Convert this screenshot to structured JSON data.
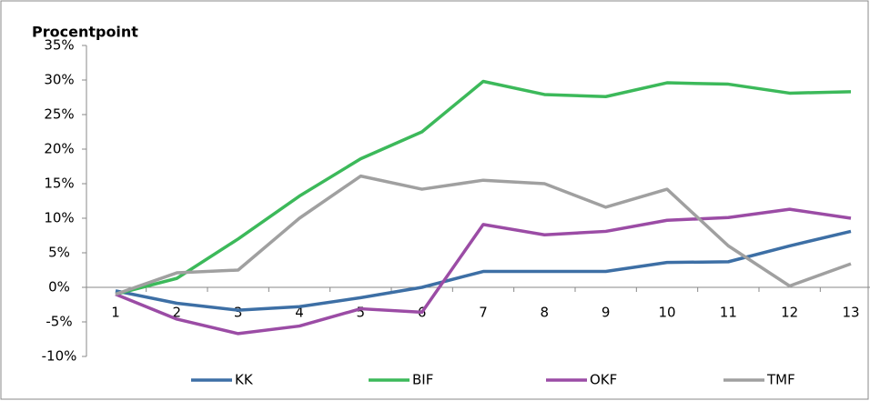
{
  "chart_data": {
    "type": "line",
    "y_label": "Procentpoint",
    "categories": [
      "1",
      "2",
      "3",
      "4",
      "5",
      "6",
      "7",
      "8",
      "9",
      "10",
      "11",
      "12",
      "13"
    ],
    "series": [
      {
        "name": "KK",
        "color": "#3d6fa5",
        "values": [
          -0.5,
          -2.3,
          -3.3,
          -2.8,
          -1.5,
          0,
          2.3,
          2.3,
          2.3,
          3.6,
          3.7,
          6,
          8.1
        ]
      },
      {
        "name": "BIF",
        "color": "#3cb95a",
        "values": [
          -1,
          1.3,
          7,
          13.2,
          18.6,
          22.5,
          29.8,
          27.9,
          27.6,
          29.6,
          29.4,
          28.1,
          28.3
        ]
      },
      {
        "name": "OKF",
        "color": "#9b4ca5",
        "values": [
          -1,
          -4.6,
          -6.7,
          -5.6,
          -3.1,
          -3.6,
          9.1,
          7.6,
          8.1,
          9.7,
          10.1,
          11.3,
          10
        ]
      },
      {
        "name": "TMF",
        "color": "#a0a0a0",
        "values": [
          -1,
          2.1,
          2.5,
          10,
          16.1,
          14.2,
          15.5,
          15,
          11.6,
          14.2,
          6,
          0.2,
          3.4
        ]
      }
    ],
    "ylim": [
      -10,
      35
    ],
    "yticks": [
      {
        "value": -10,
        "label": "-10%"
      },
      {
        "value": -5,
        "label": "-5%"
      },
      {
        "value": 0,
        "label": "0%"
      },
      {
        "value": 5,
        "label": "5%"
      },
      {
        "value": 10,
        "label": "10%"
      },
      {
        "value": 15,
        "label": "15%"
      },
      {
        "value": 20,
        "label": "20%"
      },
      {
        "value": 25,
        "label": "25%"
      },
      {
        "value": 30,
        "label": "30%"
      },
      {
        "value": 35,
        "label": "35%"
      }
    ],
    "grid": false,
    "legend": "bottom"
  }
}
